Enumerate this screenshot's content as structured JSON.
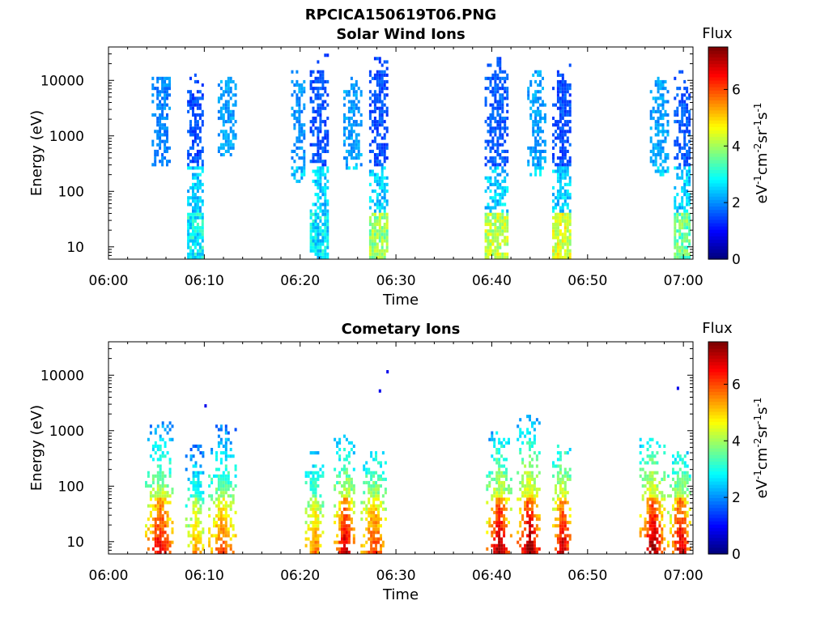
{
  "chart_data": {
    "type": "heatmap",
    "figure_title": "RPCICA150619T06.PNG",
    "panels": [
      {
        "title": "Solar Wind Ions",
        "xlabel": "Time",
        "ylabel": "Energy (eV)",
        "x_ticks": [
          "06:00",
          "06:10",
          "06:20",
          "06:30",
          "06:40",
          "06:50",
          "07:00"
        ],
        "x_range_minutes": [
          0,
          61
        ],
        "y_ticks": [
          "10",
          "100",
          "1000",
          "10000"
        ],
        "y_scale": "log",
        "y_range": [
          6,
          40000
        ],
        "colorbar": {
          "title": "Flux",
          "label": "eV-1cm-2sr-1s-1",
          "ticks": [
            "0",
            "2",
            "4",
            "6"
          ],
          "range": [
            0,
            7.5
          ],
          "colormap": "jet"
        },
        "bursts": [
          {
            "t": 5.5,
            "width": 2.0,
            "emin": 300,
            "emax": 15000,
            "flux": 1.6
          },
          {
            "t": 9.0,
            "width": 1.6,
            "emin": 6,
            "emax": 13000,
            "flux": 1.2,
            "lowflux": 3.4
          },
          {
            "t": 12.3,
            "width": 1.8,
            "emin": 400,
            "emax": 14000,
            "flux": 1.8
          },
          {
            "t": 19.8,
            "width": 1.5,
            "emin": 150,
            "emax": 15000,
            "flux": 1.7
          },
          {
            "t": 22.0,
            "width": 2.0,
            "emin": 6,
            "emax": 30000,
            "flux": 1.2,
            "lowflux": 3.3
          },
          {
            "t": 25.5,
            "width": 2.0,
            "emin": 250,
            "emax": 12000,
            "flux": 1.8
          },
          {
            "t": 28.2,
            "width": 2.0,
            "emin": 6,
            "emax": 30000,
            "flux": 1.2,
            "lowflux": 4.5
          },
          {
            "t": 40.5,
            "width": 2.5,
            "emin": 6,
            "emax": 25000,
            "flux": 1.3,
            "lowflux": 4.8
          },
          {
            "t": 44.6,
            "width": 1.8,
            "emin": 200,
            "emax": 15000,
            "flux": 1.8
          },
          {
            "t": 47.3,
            "width": 2.0,
            "emin": 6,
            "emax": 20000,
            "flux": 1.2,
            "lowflux": 5.0
          },
          {
            "t": 57.5,
            "width": 2.0,
            "emin": 200,
            "emax": 14000,
            "flux": 1.8
          },
          {
            "t": 60.0,
            "width": 2.0,
            "emin": 6,
            "emax": 15000,
            "flux": 1.3,
            "lowflux": 4.2
          }
        ]
      },
      {
        "title": "Cometary Ions",
        "xlabel": "Time",
        "ylabel": "Energy (eV)",
        "x_ticks": [
          "06:00",
          "06:10",
          "06:20",
          "06:30",
          "06:40",
          "06:50",
          "07:00"
        ],
        "x_range_minutes": [
          0,
          61
        ],
        "y_ticks": [
          "10",
          "100",
          "1000",
          "10000"
        ],
        "y_scale": "log",
        "y_range": [
          6,
          40000
        ],
        "colorbar": {
          "title": "Flux",
          "label": "eV-1cm-2sr-1s-1",
          "ticks": [
            "0",
            "2",
            "4",
            "6"
          ],
          "range": [
            0,
            7.5
          ],
          "colormap": "jet"
        },
        "bursts": [
          {
            "t": 5.3,
            "width": 3.0,
            "emin": 6,
            "emax": 1400,
            "flux": 5.2,
            "peak": 6.5
          },
          {
            "t": 9.0,
            "width": 2.0,
            "emin": 6,
            "emax": 600,
            "flux": 4.3,
            "peak": 5.2
          },
          {
            "t": 11.8,
            "width": 2.8,
            "emin": 6,
            "emax": 1300,
            "flux": 4.9,
            "peak": 5.8
          },
          {
            "t": 21.4,
            "width": 1.8,
            "emin": 6,
            "emax": 400,
            "flux": 4.7,
            "peak": 5.5
          },
          {
            "t": 24.6,
            "width": 2.2,
            "emin": 6,
            "emax": 800,
            "flux": 5.1,
            "peak": 6.8
          },
          {
            "t": 27.6,
            "width": 2.6,
            "emin": 6,
            "emax": 400,
            "flux": 5.0,
            "peak": 6.0
          },
          {
            "t": 40.7,
            "width": 2.6,
            "emin": 6,
            "emax": 1000,
            "flux": 5.2,
            "peak": 7.0
          },
          {
            "t": 43.8,
            "width": 2.4,
            "emin": 6,
            "emax": 2000,
            "flux": 5.6,
            "peak": 7.2
          },
          {
            "t": 47.3,
            "width": 2.0,
            "emin": 6,
            "emax": 600,
            "flux": 5.3,
            "peak": 6.8
          },
          {
            "t": 56.7,
            "width": 2.6,
            "emin": 6,
            "emax": 700,
            "flux": 5.4,
            "peak": 7.1
          },
          {
            "t": 59.6,
            "width": 2.6,
            "emin": 6,
            "emax": 400,
            "flux": 4.9,
            "peak": 6.8
          }
        ],
        "outliers": [
          {
            "t": 10.0,
            "e": 2800,
            "flux": 0.8
          },
          {
            "t": 28.2,
            "e": 5200,
            "flux": 0.8
          },
          {
            "t": 29.0,
            "e": 11500,
            "flux": 0.8
          },
          {
            "t": 59.3,
            "e": 5800,
            "flux": 0.8
          }
        ]
      }
    ]
  }
}
